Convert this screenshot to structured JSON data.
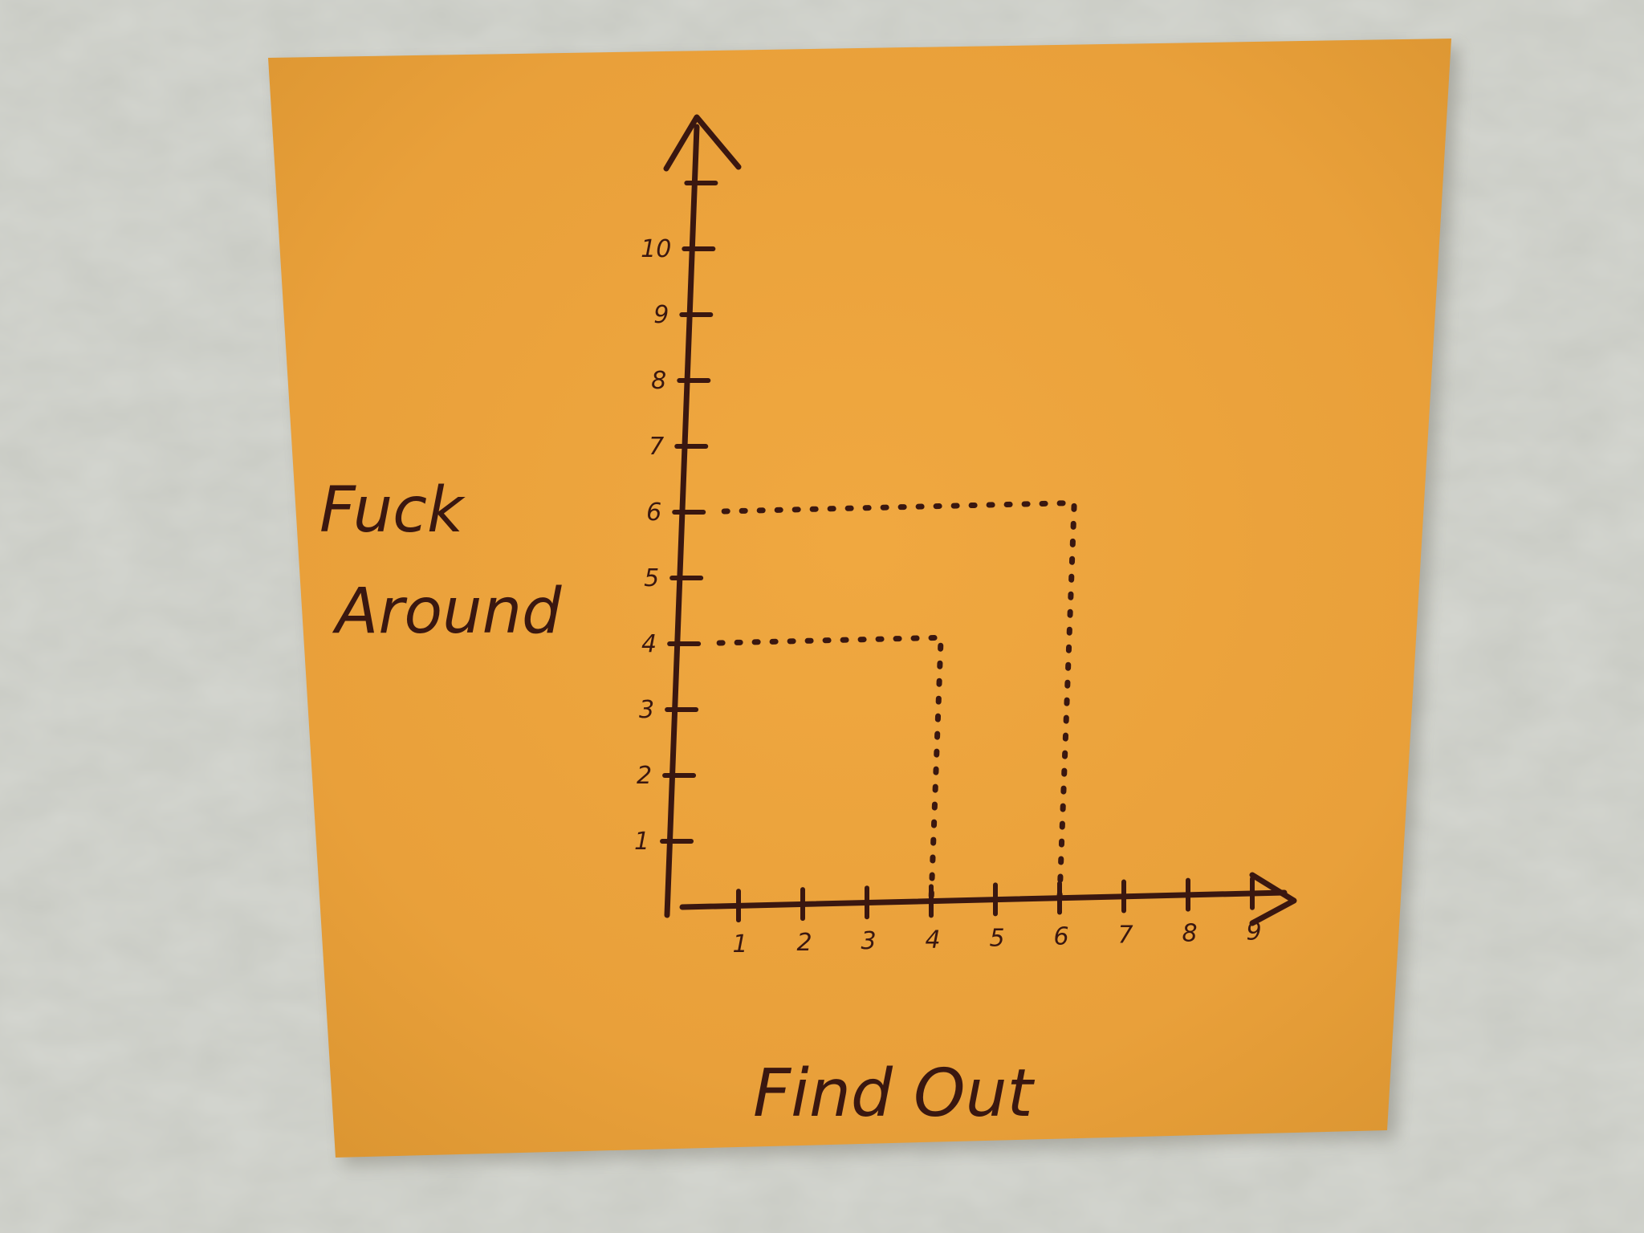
{
  "note": {
    "color": "#eea63e",
    "ink_color": "#3a1710",
    "y_axis_label_line1": "Fuck",
    "y_axis_label_line2": "Around",
    "x_axis_label": "Find Out"
  },
  "chart_data": {
    "type": "line",
    "title": "",
    "xlabel": "Find Out",
    "ylabel": "Fuck Around",
    "x_ticks": [
      "1",
      "2",
      "3",
      "4",
      "5",
      "6",
      "7",
      "8",
      "9"
    ],
    "y_ticks": [
      "1",
      "2",
      "3",
      "4",
      "5",
      "6",
      "7",
      "8",
      "9",
      "10"
    ],
    "xlim": [
      0,
      9
    ],
    "ylim": [
      0,
      11
    ],
    "grid": false,
    "series": [
      {
        "x": [
          0,
          4,
          4
        ],
        "y": [
          4,
          4,
          0
        ],
        "style": "dotted"
      },
      {
        "x": [
          0,
          6,
          6
        ],
        "y": [
          6,
          6,
          0
        ],
        "style": "dotted"
      }
    ]
  }
}
